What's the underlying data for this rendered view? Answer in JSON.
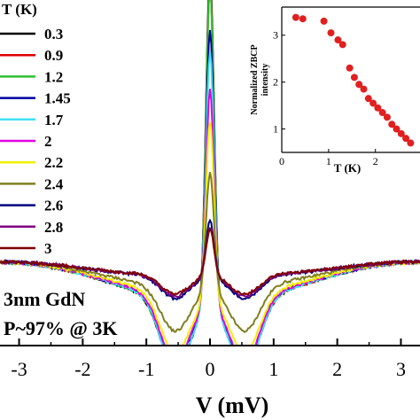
{
  "chart_data": [
    {
      "type": "line",
      "xlabel": "V (mV)",
      "ylabel": "",
      "xlim": [
        -3.3,
        3.3
      ],
      "x_ticks": [
        "-3",
        "-2",
        "-1",
        "0",
        "1",
        "2",
        "3"
      ],
      "legend": {
        "title": "T (K)",
        "placement": "left"
      },
      "annotations": [
        "3nm GdN",
        "P~97% @ 3K"
      ],
      "series": [
        {
          "name": "0.3",
          "color": "#000000",
          "peak": 3.45,
          "dip": 0.97,
          "bg": 1.0
        },
        {
          "name": "0.9",
          "color": "#e00000",
          "peak": 3.3,
          "dip": 0.96,
          "bg": 1.0
        },
        {
          "name": "1.2",
          "color": "#30c030",
          "peak": 3.25,
          "dip": 0.96,
          "bg": 1.0
        },
        {
          "name": "1.45",
          "color": "#0000a0",
          "peak": 2.65,
          "dip": 0.95,
          "bg": 1.0
        },
        {
          "name": "1.7",
          "color": "#40e0f0",
          "peak": 2.35,
          "dip": 0.97,
          "bg": 1.0
        },
        {
          "name": "2",
          "color": "#e000e0",
          "peak": 1.85,
          "dip": 0.9,
          "bg": 1.0
        },
        {
          "name": "2.2",
          "color": "#f0f000",
          "peak": 1.45,
          "dip": 0.82,
          "bg": 1.0
        },
        {
          "name": "2.4",
          "color": "#808020",
          "peak": 0.85,
          "dip": 0.62,
          "bg": 1.0
        },
        {
          "name": "2.6",
          "color": "#000080",
          "peak": 0.38,
          "dip": 0.32,
          "bg": 1.0
        },
        {
          "name": "2.8",
          "color": "#800080",
          "peak": 0.3,
          "dip": 0.3,
          "bg": 1.0
        },
        {
          "name": "3",
          "color": "#800000",
          "peak": 0.28,
          "dip": 0.28,
          "bg": 1.0
        }
      ]
    },
    {
      "type": "scatter",
      "xlabel": "T (K)",
      "ylabel": "Normalized ZBCP intensity",
      "xlim": [
        0,
        2.8
      ],
      "ylim": [
        0.5,
        3.6
      ],
      "x_ticks": [
        "0",
        "1",
        "2"
      ],
      "y_ticks": [
        "1",
        "2",
        "3"
      ],
      "marker_color": "#e02020",
      "x": [
        0.3,
        0.45,
        0.9,
        1.05,
        1.2,
        1.3,
        1.45,
        1.55,
        1.65,
        1.75,
        1.85,
        1.95,
        2.05,
        2.15,
        2.25,
        2.35,
        2.45,
        2.55,
        2.65,
        2.75
      ],
      "y": [
        3.38,
        3.35,
        3.3,
        3.05,
        2.9,
        2.8,
        2.3,
        2.1,
        1.95,
        1.85,
        1.65,
        1.55,
        1.45,
        1.35,
        1.25,
        1.1,
        1.0,
        0.9,
        0.8,
        0.7
      ]
    }
  ]
}
